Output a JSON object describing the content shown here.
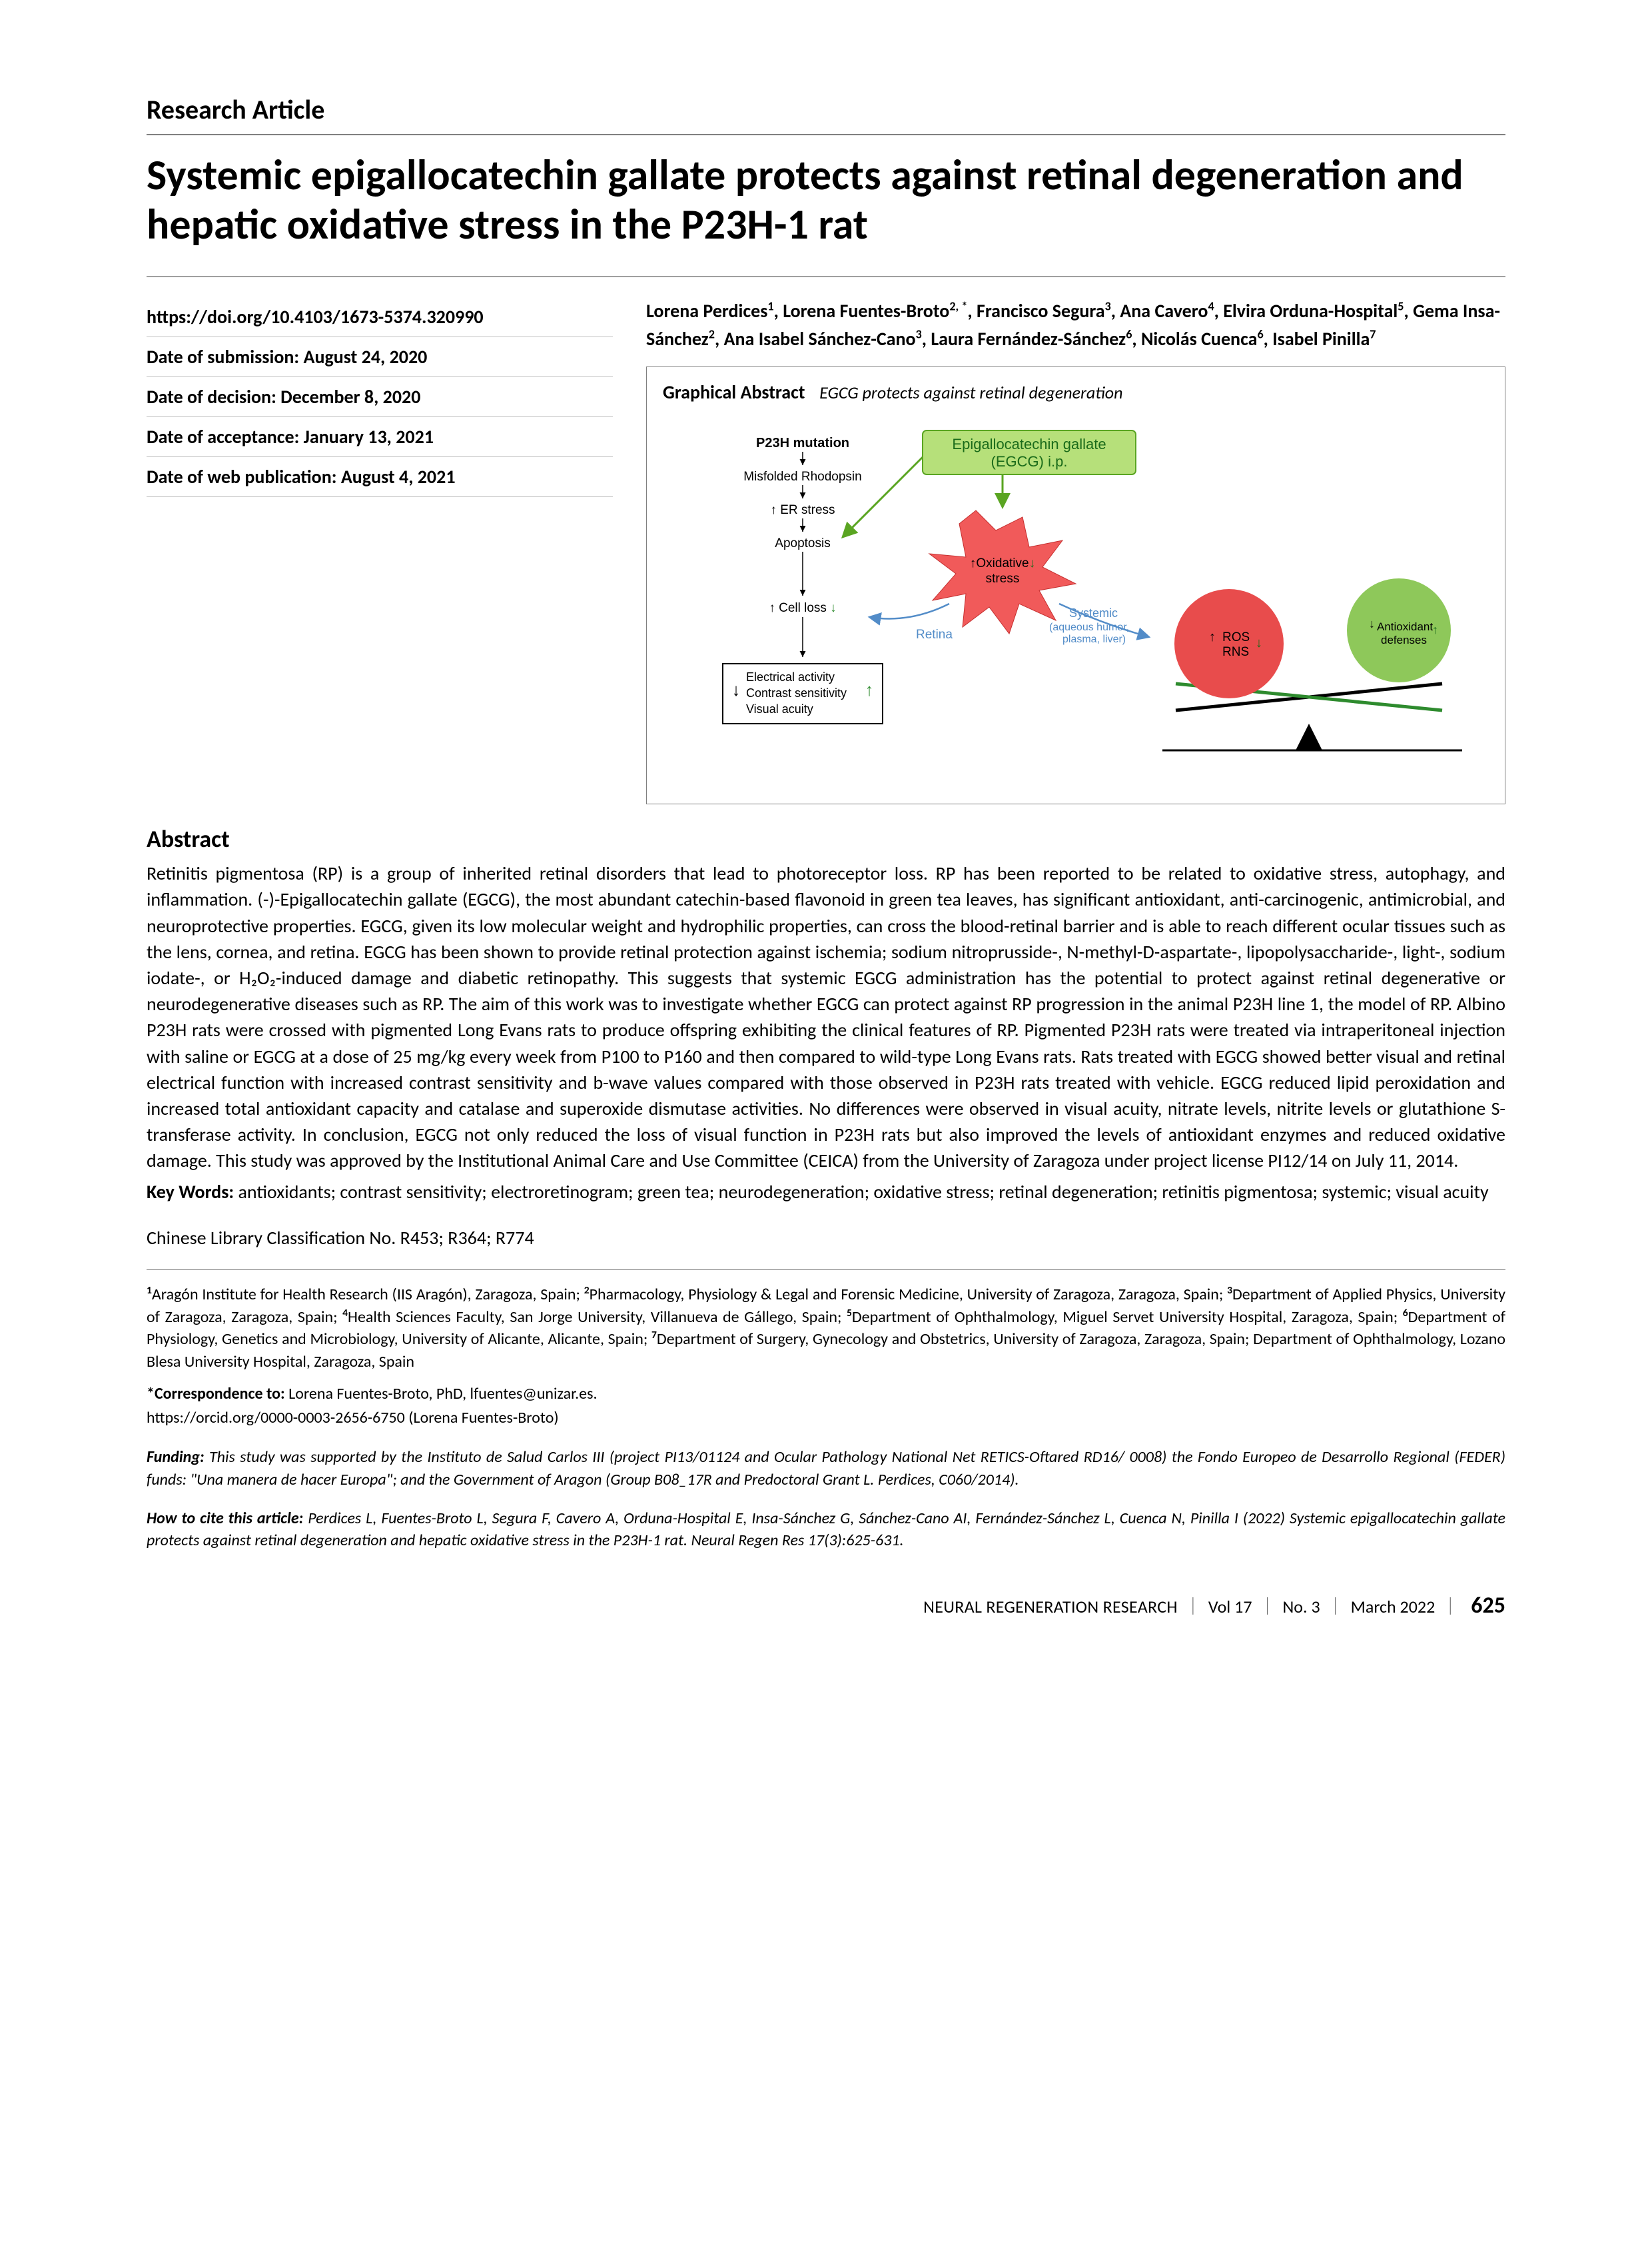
{
  "articleType": "Research Article",
  "title": "Systemic epigallocatechin gallate protects against retinal degeneration and hepatic oxidative stress in the P23H-1 rat",
  "meta": {
    "doi": "https://doi.org/10.4103/1673-5374.320990",
    "submission": "Date of submission: August 24, 2020",
    "decision": "Date of decision: December 8, 2020",
    "acceptance": "Date of acceptance: January 13, 2021",
    "webpub": "Date of web publication: August 4, 2021"
  },
  "authorsHtml": "Lorena Perdices<sup>1</sup>, Lorena Fuentes-Broto<sup>2, *</sup>, Francisco Segura<sup>3</sup>, Ana Cavero<sup>4</sup>, Elvira Orduna-Hospital<sup>5</sup>, Gema Insa-Sánchez<sup>2</sup>, Ana Isabel Sánchez-Cano<sup>3</sup>, Laura Fernández-Sánchez<sup>6</sup>, Nicolás Cuenca<sup>6</sup>, Isabel Pinilla<sup>7</sup>",
  "ga": {
    "header": "Graphical Abstract",
    "subtitle": "EGCG protects against retinal degeneration",
    "labels": {
      "p23h": "P23H mutation",
      "misfolded": "Misfolded Rhodopsin",
      "er": "↑ ER stress",
      "apoptosis": "Apoptosis",
      "cellloss": "↑ Cell loss ↓",
      "electrical": "Electrical activity",
      "contrast": "Contrast sensitivity",
      "acuity": "Visual acuity",
      "egcg_top": "Epigallocatechin gallate",
      "egcg_bot": "(EGCG) i.p.",
      "oxidative": "Oxidative",
      "stress": "stress",
      "retina": "Retina",
      "systemic": "Systemic",
      "systemic2": "(aqueous humor,",
      "systemic3": "plasma, liver)",
      "ros": "ROS",
      "rns": "RNS",
      "antiox": "Antioxidant",
      "defenses": "defenses"
    },
    "colors": {
      "egcg_fill": "#b6e07a",
      "egcg_stroke": "#5aa522",
      "starburst": "#f15a5a",
      "retina_line": "#528cc8",
      "red_ball": "#e84c4c",
      "green_ball": "#8ec85a",
      "black": "#000000",
      "box_border": "#808080"
    }
  },
  "abstractHead": "Abstract",
  "abstractText": "Retinitis pigmentosa (RP) is a group of inherited retinal disorders that lead to photoreceptor loss. RP has been reported to be related to oxidative stress, autophagy, and inflammation. (-)-Epigallocatechin gallate (EGCG), the most abundant catechin-based flavonoid in green tea leaves, has significant antioxidant, anti-carcinogenic, antimicrobial, and neuroprotective properties. EGCG, given its low molecular weight and hydrophilic properties, can cross the blood-retinal barrier and is able to reach different ocular tissues such as the lens, cornea, and retina. EGCG has been shown to provide retinal protection against ischemia; sodium nitroprusside-, N-methyl-D-aspartate-, lipopolysaccharide-, light-, sodium iodate-, or H₂O₂-induced damage and diabetic retinopathy. This suggests that systemic EGCG administration has the potential to protect against retinal degenerative or neurodegenerative diseases such as RP. The aim of this work was to investigate whether EGCG can protect against RP progression in the animal P23H line 1, the model of RP. Albino P23H rats were crossed with pigmented Long Evans rats to produce offspring exhibiting the clinical features of RP. Pigmented P23H rats were treated via intraperitoneal injection with saline or EGCG at a dose of 25 mg/kg every week from P100 to P160 and then compared to wild-type Long Evans rats. Rats treated with EGCG showed better visual and retinal electrical function with increased contrast sensitivity and b-wave values compared with those observed in P23H rats treated with vehicle. EGCG reduced lipid peroxidation and increased total antioxidant capacity and catalase and superoxide dismutase activities. No differences were observed in visual acuity, nitrate levels, nitrite levels or glutathione S-transferase activity. In conclusion, EGCG not only reduced the loss of visual function in P23H rats but also improved the levels of antioxidant enzymes and reduced oxidative damage. This study was approved by the Institutional Animal Care and Use Committee (CEICA) from the University of Zaragoza under project license PI12/14 on July 11, 2014.",
  "keywordsLabel": "Key Words:",
  "keywordsText": "antioxidants; contrast sensitivity; electroretinogram; green tea; neurodegeneration; oxidative stress; retinal degeneration; retinitis pigmentosa; systemic; visual acuity",
  "clc": "Chinese Library Classification No. R453; R364; R774",
  "affiliationsHtml": "<sup>1</sup>Aragón Institute for Health Research (IIS Aragón), Zaragoza, Spain; <sup>2</sup>Pharmacology, Physiology & Legal and Forensic Medicine, University of Zaragoza, Zaragoza, Spain; <sup>3</sup>Department of Applied Physics, University of Zaragoza, Zaragoza, Spain; <sup>4</sup>Health Sciences Faculty, San Jorge University, Villanueva de Gállego, Spain; <sup>5</sup>Department of Ophthalmology, Miguel Servet University Hospital, Zaragoza, Spain; <sup>6</sup>Department of Physiology, Genetics and Microbiology, University of Alicante, Alicante, Spain; <sup>7</sup>Department of Surgery, Gynecology and Obstetrics, University of Zaragoza, Zaragoza, Spain; Department of Ophthalmology, Lozano Blesa University Hospital, Zaragoza, Spain",
  "correspondenceLabel": "*Correspondence to:",
  "correspondenceText": "Lorena Fuentes-Broto, PhD, lfuentes@unizar.es.",
  "orcid": "https://orcid.org/0000-0003-2656-6750 (Lorena Fuentes-Broto)",
  "fundingLabel": "Funding:",
  "fundingText": "This study was supported by the Instituto de Salud Carlos III (project PI13/01124 and Ocular Pathology National Net RETICS-Oftared RD16/ 0008) the Fondo Europeo de Desarrollo Regional (FEDER) funds: \"Una manera de hacer Europa\"; and the Government of Aragon (Group B08_17R and Predoctoral Grant L. Perdices, C060/2014).",
  "citeLabel": "How to cite this article:",
  "citeText": "Perdices L, Fuentes-Broto L, Segura F, Cavero A, Orduna-Hospital E, Insa-Sánchez G, Sánchez-Cano AI, Fernández-Sánchez L, Cuenca N, Pinilla I (2022) Systemic epigallocatechin gallate protects against retinal degeneration and hepatic oxidative stress in the P23H-1 rat. Neural Regen Res 17(3):625-631.",
  "footer": {
    "journal": "NEURAL REGENERATION RESEARCH",
    "vol": "Vol 17",
    "no": "No. 3",
    "month": "March 2022",
    "page": "625"
  }
}
